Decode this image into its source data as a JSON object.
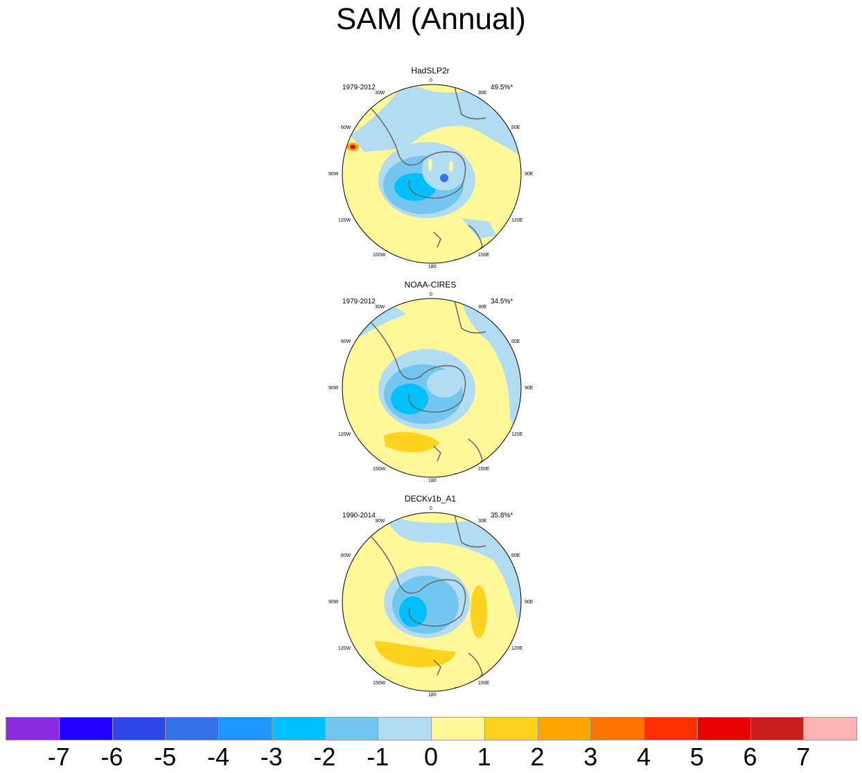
{
  "figure": {
    "title": "SAM (Annual)"
  },
  "panels": [
    {
      "name": "HadSLP2r",
      "period": "1979-2012",
      "variance": "49.5%*"
    },
    {
      "name": "NOAA-CIRES",
      "period": "1979-2012",
      "variance": "34.5%*"
    },
    {
      "name": "DECKv1b_A1",
      "period": "1990-2014",
      "variance": "35.8%*"
    }
  ],
  "map_labels": {
    "lon_0": "0",
    "lon_30e": "30E",
    "lon_60e": "60E",
    "lon_90e": "90E",
    "lon_120e": "120E",
    "lon_150e": "150E",
    "lon_180": "180",
    "lon_150w": "150W",
    "lon_120w": "120W",
    "lon_90w": "90W",
    "lon_60w": "60W",
    "lon_30w": "30W"
  },
  "colorbar": {
    "colors": [
      "#8a2be2",
      "#1f00ff",
      "#2d46e6",
      "#3371e8",
      "#1e96ff",
      "#00bfff",
      "#73c6f0",
      "#b2dcf2",
      "#fff799",
      "#ffd21f",
      "#ffa500",
      "#ff7300",
      "#ff2f00",
      "#e60000",
      "#c81e1e",
      "#ffb4b4"
    ],
    "labels": [
      "-7",
      "-6",
      "-5",
      "-4",
      "-3",
      "-2",
      "-1",
      "0",
      "1",
      "2",
      "3",
      "4",
      "5",
      "6",
      "7"
    ]
  }
}
